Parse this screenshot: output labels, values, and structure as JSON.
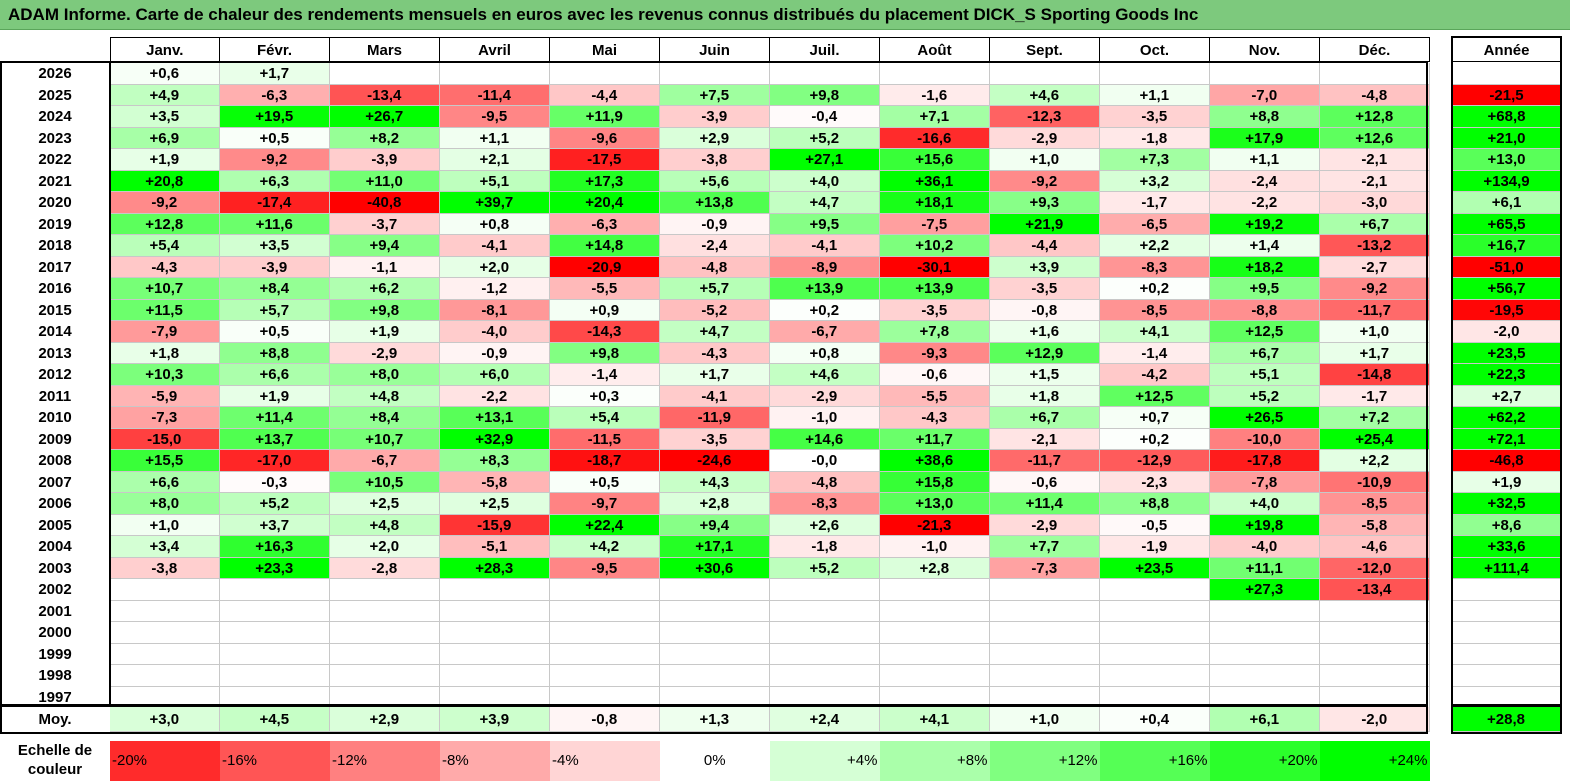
{
  "title": "ADAM Informe. Carte de chaleur des rendements mensuels en euros avec les revenus connus distribués du placement DICK_S Sporting Goods Inc",
  "months": [
    "Janv.",
    "Févr.",
    "Mars",
    "Avril",
    "Mai",
    "Juin",
    "Juil.",
    "Août",
    "Sept.",
    "Oct.",
    "Nov.",
    "Déc."
  ],
  "year_header": "Année",
  "avg_label": "Moy.",
  "scale_label": "Echelle de couleur",
  "colors": {
    "title_bar": "#7dc97d",
    "red_max": "#ff0000",
    "green_max": "#00ff00",
    "neutral": "#ffffff"
  },
  "chart_data": {
    "type": "heatmap",
    "title": "ADAM Informe. Carte de chaleur des rendements mensuels en euros avec les revenus connus distribués du placement DICK_S Sporting Goods Inc",
    "x_categories": [
      "Janv.",
      "Févr.",
      "Mars",
      "Avril",
      "Mai",
      "Juin",
      "Juil.",
      "Août",
      "Sept.",
      "Oct.",
      "Nov.",
      "Déc."
    ],
    "rows": [
      {
        "year": "2026",
        "values": [
          "+0,6",
          "+1,7",
          "",
          "",
          "",
          "",
          "",
          "",
          "",
          "",
          "",
          ""
        ],
        "annual": ""
      },
      {
        "year": "2025",
        "values": [
          "+4,9",
          "-6,3",
          "-13,4",
          "-11,4",
          "-4,4",
          "+7,5",
          "+9,8",
          "-1,6",
          "+4,6",
          "+1,1",
          "-7,0",
          "-4,8"
        ],
        "annual": "-21,5"
      },
      {
        "year": "2024",
        "values": [
          "+3,5",
          "+19,5",
          "+26,7",
          "-9,5",
          "+11,9",
          "-3,9",
          "-0,4",
          "+7,1",
          "-12,3",
          "-3,5",
          "+8,8",
          "+12,8"
        ],
        "annual": "+68,8"
      },
      {
        "year": "2023",
        "values": [
          "+6,9",
          "+0,5",
          "+8,2",
          "+1,1",
          "-9,6",
          "+2,9",
          "+5,2",
          "-16,6",
          "-2,9",
          "-1,8",
          "+17,9",
          "+12,6"
        ],
        "annual": "+21,0"
      },
      {
        "year": "2022",
        "values": [
          "+1,9",
          "-9,2",
          "-3,9",
          "+2,1",
          "-17,5",
          "-3,8",
          "+27,1",
          "+15,6",
          "+1,0",
          "+7,3",
          "+1,1",
          "-2,1"
        ],
        "annual": "+13,0"
      },
      {
        "year": "2021",
        "values": [
          "+20,8",
          "+6,3",
          "+11,0",
          "+5,1",
          "+17,3",
          "+5,6",
          "+4,0",
          "+36,1",
          "-9,2",
          "+3,2",
          "-2,4",
          "-2,1"
        ],
        "annual": "+134,9"
      },
      {
        "year": "2020",
        "values": [
          "-9,2",
          "-17,4",
          "-40,8",
          "+39,7",
          "+20,4",
          "+13,8",
          "+4,7",
          "+18,1",
          "+9,3",
          "-1,7",
          "-2,2",
          "-3,0"
        ],
        "annual": "+6,1"
      },
      {
        "year": "2019",
        "values": [
          "+12,8",
          "+11,6",
          "-3,7",
          "+0,8",
          "-6,3",
          "-0,9",
          "+9,5",
          "-7,5",
          "+21,9",
          "-6,5",
          "+19,2",
          "+6,7"
        ],
        "annual": "+65,5"
      },
      {
        "year": "2018",
        "values": [
          "+5,4",
          "+3,5",
          "+9,4",
          "-4,1",
          "+14,8",
          "-2,4",
          "-4,1",
          "+10,2",
          "-4,4",
          "+2,2",
          "+1,4",
          "-13,2"
        ],
        "annual": "+16,7"
      },
      {
        "year": "2017",
        "values": [
          "-4,3",
          "-3,9",
          "-1,1",
          "+2,0",
          "-20,9",
          "-4,8",
          "-8,9",
          "-30,1",
          "+3,9",
          "-8,3",
          "+18,2",
          "-2,7"
        ],
        "annual": "-51,0"
      },
      {
        "year": "2016",
        "values": [
          "+10,7",
          "+8,4",
          "+6,2",
          "-1,2",
          "-5,5",
          "+5,7",
          "+13,9",
          "+13,9",
          "-3,5",
          "+0,2",
          "+9,5",
          "-9,2"
        ],
        "annual": "+56,7"
      },
      {
        "year": "2015",
        "values": [
          "+11,5",
          "+5,7",
          "+9,8",
          "-8,1",
          "+0,9",
          "-5,2",
          "+0,2",
          "-3,5",
          "-0,8",
          "-8,5",
          "-8,8",
          "-11,7"
        ],
        "annual": "-19,5"
      },
      {
        "year": "2014",
        "values": [
          "-7,9",
          "+0,5",
          "+1,9",
          "-4,0",
          "-14,3",
          "+4,7",
          "-6,7",
          "+7,8",
          "+1,6",
          "+4,1",
          "+12,5",
          "+1,0"
        ],
        "annual": "-2,0"
      },
      {
        "year": "2013",
        "values": [
          "+1,8",
          "+8,8",
          "-2,9",
          "-0,9",
          "+9,8",
          "-4,3",
          "+0,8",
          "-9,3",
          "+12,9",
          "-1,4",
          "+6,7",
          "+1,7"
        ],
        "annual": "+23,5"
      },
      {
        "year": "2012",
        "values": [
          "+10,3",
          "+6,6",
          "+8,0",
          "+6,0",
          "-1,4",
          "+1,7",
          "+4,6",
          "-0,6",
          "+1,5",
          "-4,2",
          "+5,1",
          "-14,8"
        ],
        "annual": "+22,3"
      },
      {
        "year": "2011",
        "values": [
          "-5,9",
          "+1,9",
          "+4,8",
          "-2,2",
          "+0,3",
          "-4,1",
          "-2,9",
          "-5,5",
          "+1,8",
          "+12,5",
          "+5,2",
          "-1,7"
        ],
        "annual": "+2,7"
      },
      {
        "year": "2010",
        "values": [
          "-7,3",
          "+11,4",
          "+8,4",
          "+13,1",
          "+5,4",
          "-11,9",
          "-1,0",
          "-4,3",
          "+6,7",
          "+0,7",
          "+26,5",
          "+7,2"
        ],
        "annual": "+62,2"
      },
      {
        "year": "2009",
        "values": [
          "-15,0",
          "+13,7",
          "+10,7",
          "+32,9",
          "-11,5",
          "-3,5",
          "+14,6",
          "+11,7",
          "-2,1",
          "+0,2",
          "-10,0",
          "+25,4"
        ],
        "annual": "+72,1"
      },
      {
        "year": "2008",
        "values": [
          "+15,5",
          "-17,0",
          "-6,7",
          "+8,3",
          "-18,7",
          "-24,6",
          "-0,0",
          "+38,6",
          "-11,7",
          "-12,9",
          "-17,8",
          "+2,2"
        ],
        "annual": "-46,8"
      },
      {
        "year": "2007",
        "values": [
          "+6,6",
          "-0,3",
          "+10,5",
          "-5,8",
          "+0,5",
          "+4,3",
          "-4,8",
          "+15,8",
          "-0,6",
          "-2,3",
          "-7,8",
          "-10,9"
        ],
        "annual": "+1,9"
      },
      {
        "year": "2006",
        "values": [
          "+8,0",
          "+5,2",
          "+2,5",
          "+2,5",
          "-9,7",
          "+2,8",
          "-8,3",
          "+13,0",
          "+11,4",
          "+8,8",
          "+4,0",
          "-8,5"
        ],
        "annual": "+32,5"
      },
      {
        "year": "2005",
        "values": [
          "+1,0",
          "+3,7",
          "+4,8",
          "-15,9",
          "+22,4",
          "+9,4",
          "+2,6",
          "-21,3",
          "-2,9",
          "-0,5",
          "+19,8",
          "-5,8"
        ],
        "annual": "+8,6"
      },
      {
        "year": "2004",
        "values": [
          "+3,4",
          "+16,3",
          "+2,0",
          "-5,1",
          "+4,2",
          "+17,1",
          "-1,8",
          "-1,0",
          "+7,7",
          "-1,9",
          "-4,0",
          "-4,6"
        ],
        "annual": "+33,6"
      },
      {
        "year": "2003",
        "values": [
          "-3,8",
          "+23,3",
          "-2,8",
          "+28,3",
          "-9,5",
          "+30,6",
          "+5,2",
          "+2,8",
          "-7,3",
          "+23,5",
          "+11,1",
          "-12,0"
        ],
        "annual": "+111,4"
      },
      {
        "year": "2002",
        "values": [
          "",
          "",
          "",
          "",
          "",
          "",
          "",
          "",
          "",
          "",
          "+27,3",
          "-13,4"
        ],
        "annual": ""
      },
      {
        "year": "2001",
        "values": [
          "",
          "",
          "",
          "",
          "",
          "",
          "",
          "",
          "",
          "",
          "",
          ""
        ],
        "annual": ""
      },
      {
        "year": "2000",
        "values": [
          "",
          "",
          "",
          "",
          "",
          "",
          "",
          "",
          "",
          "",
          "",
          ""
        ],
        "annual": ""
      },
      {
        "year": "1999",
        "values": [
          "",
          "",
          "",
          "",
          "",
          "",
          "",
          "",
          "",
          "",
          "",
          ""
        ],
        "annual": ""
      },
      {
        "year": "1998",
        "values": [
          "",
          "",
          "",
          "",
          "",
          "",
          "",
          "",
          "",
          "",
          "",
          ""
        ],
        "annual": ""
      },
      {
        "year": "1997",
        "values": [
          "",
          "",
          "",
          "",
          "",
          "",
          "",
          "",
          "",
          "",
          "",
          ""
        ],
        "annual": ""
      }
    ],
    "averages": [
      "+3,0",
      "+4,5",
      "+2,9",
      "+3,9",
      "-0,8",
      "+1,3",
      "+2,4",
      "+4,1",
      "+1,0",
      "+0,4",
      "+6,1",
      "-2,0"
    ],
    "annual_average": "+28,8",
    "color_scale": [
      "-20%",
      "-16%",
      "-12%",
      "-8%",
      "-4%",
      "0%",
      "+4%",
      "+8%",
      "+12%",
      "+16%",
      "+20%",
      "+24%"
    ]
  }
}
